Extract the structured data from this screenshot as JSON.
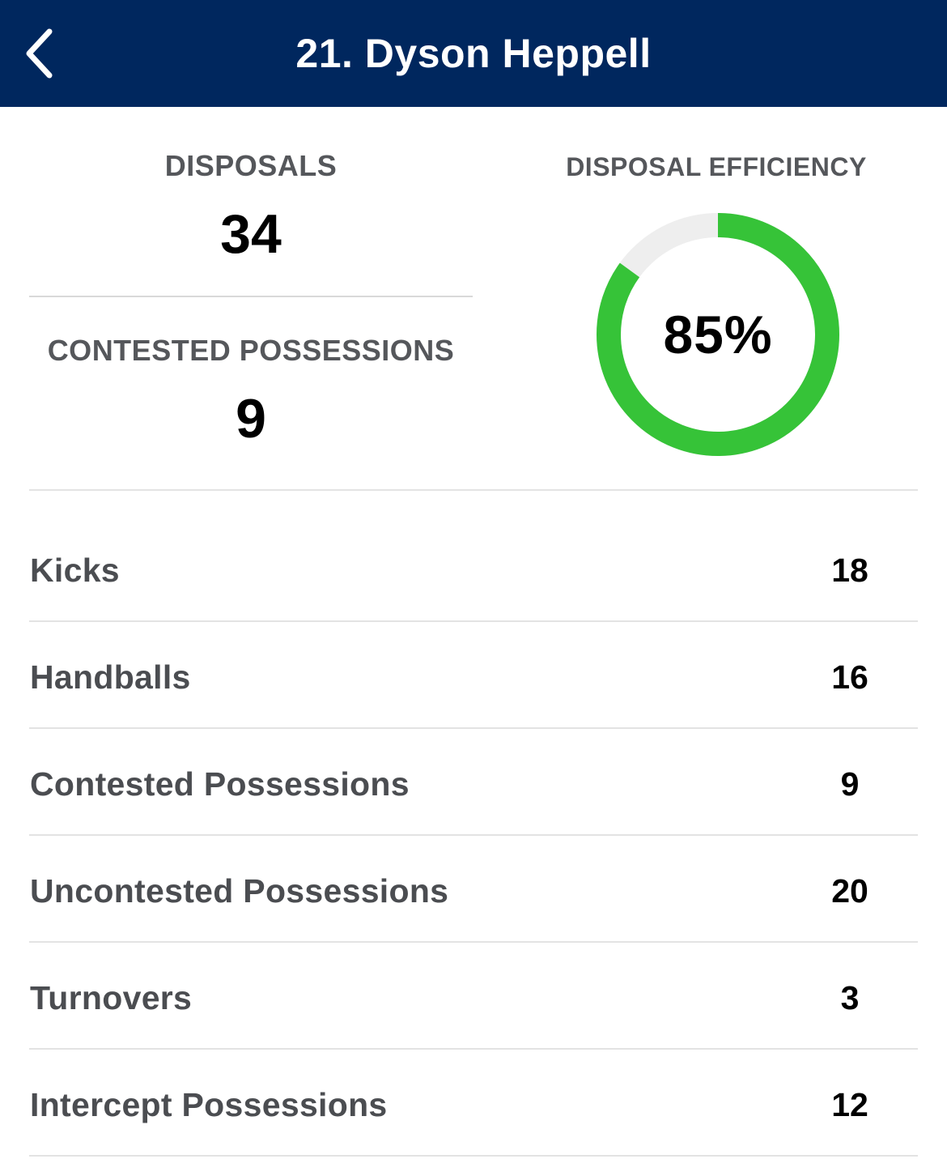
{
  "header": {
    "title": "21. Dyson Heppell",
    "back_icon": "chevron-left-icon",
    "background_color": "#00275e"
  },
  "summary": {
    "disposals": {
      "label": "DISPOSALS",
      "value": "34"
    },
    "contested_possessions": {
      "label": "CONTESTED POSSESSIONS",
      "value": "9"
    },
    "disposal_efficiency": {
      "label": "DISPOSAL EFFICIENCY",
      "value_text": "85%",
      "value": 85,
      "fill_color": "#36c338",
      "track_color": "#eeeeee"
    }
  },
  "stats": [
    {
      "label": "Kicks",
      "value": "18"
    },
    {
      "label": "Handballs",
      "value": "16"
    },
    {
      "label": "Contested Possessions",
      "value": "9"
    },
    {
      "label": "Uncontested Possessions",
      "value": "20"
    },
    {
      "label": "Turnovers",
      "value": "3"
    },
    {
      "label": "Intercept Possessions",
      "value": "12"
    }
  ]
}
